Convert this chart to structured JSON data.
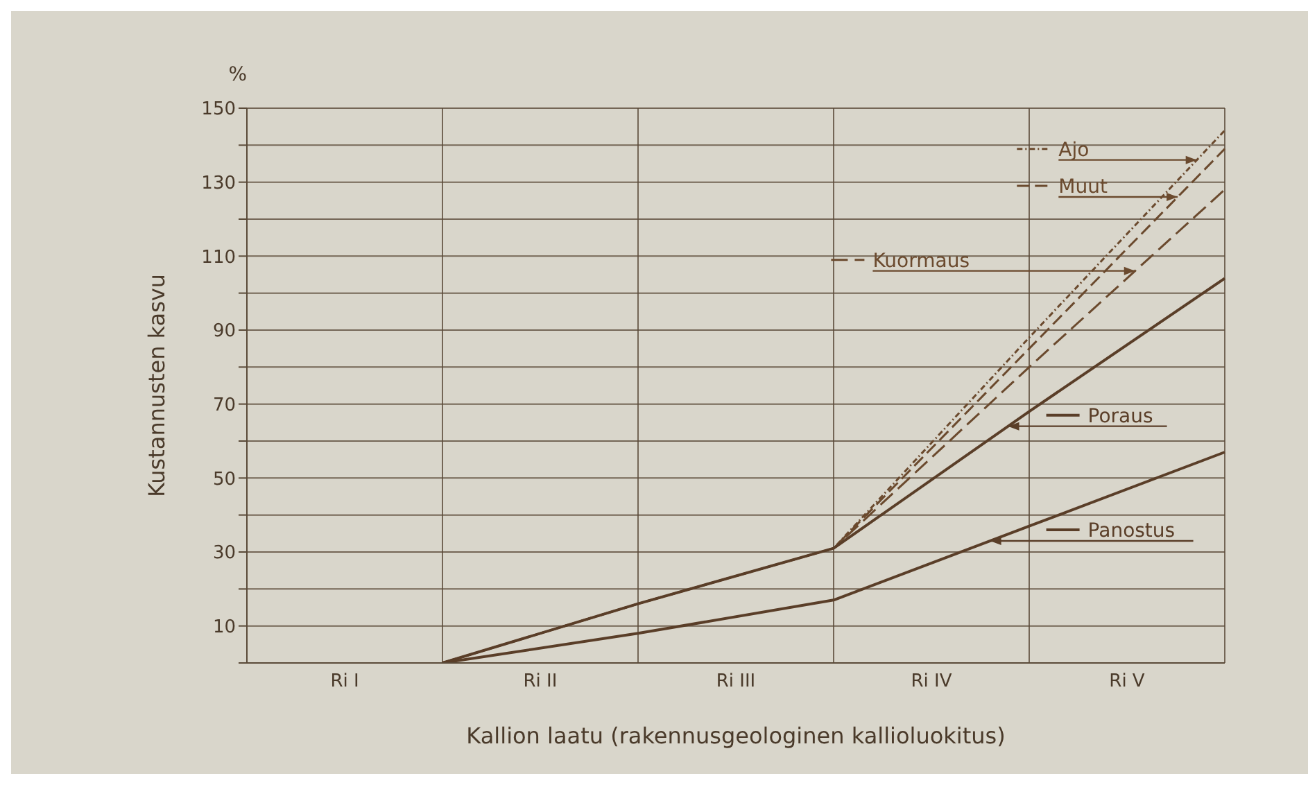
{
  "chart_data": {
    "type": "line",
    "xlabel": "Kallion laatu (rakennusgeologinen kallioluokitus)",
    "ylabel": "Kustannusten kasvu",
    "annotations": [
      "%"
    ],
    "categories": [
      null,
      "Ri I",
      null,
      "Ri II",
      null,
      "Ri III",
      null,
      "Ri IV",
      null,
      "Ri V",
      null
    ],
    "ylim": [
      0,
      150
    ],
    "yticks": [
      {
        "value": 0,
        "label": null
      },
      10,
      {
        "value": 20,
        "label": null
      },
      30,
      {
        "value": 40,
        "label": null
      },
      50,
      {
        "value": 60,
        "label": null
      },
      70,
      {
        "value": 80,
        "label": null
      },
      90,
      {
        "value": 100,
        "label": null
      },
      110,
      {
        "value": 120,
        "label": null
      },
      130,
      {
        "value": 140,
        "label": null
      },
      150
    ],
    "grid": true,
    "legend": "right",
    "marker": "none",
    "series": [
      {
        "name": "Ajo",
        "color": "#6b4a2e",
        "line_style": "dashed",
        "values": [
          null,
          null,
          0,
          null,
          16,
          null,
          31,
          null,
          88,
          null,
          144
        ]
      },
      {
        "name": "Muut",
        "color": "#6b4a2e",
        "line_style": "dashed",
        "values": [
          null,
          null,
          0,
          null,
          16,
          null,
          31,
          null,
          85,
          null,
          139
        ]
      },
      {
        "name": "Kuormaus",
        "color": "#6b4a2e",
        "line_style": "dashed",
        "values": [
          null,
          null,
          0,
          null,
          16,
          null,
          31,
          null,
          80,
          null,
          128
        ]
      },
      {
        "name": "Poraus",
        "color": "#5a3e28",
        "line_style": "solid",
        "values": [
          null,
          null,
          0,
          null,
          16,
          null,
          31,
          null,
          68,
          null,
          104
        ]
      },
      {
        "name": "Panostus",
        "color": "#5a3e28",
        "line_style": "solid",
        "values": [
          null,
          null,
          0,
          null,
          8,
          null,
          17,
          null,
          37,
          null,
          57
        ]
      }
    ]
  }
}
